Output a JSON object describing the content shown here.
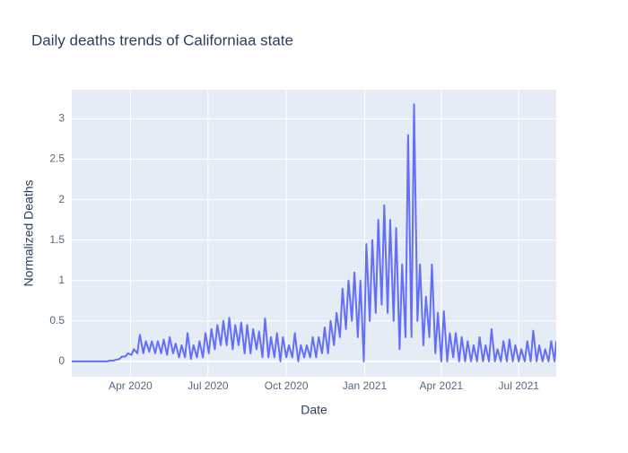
{
  "chart_data": {
    "type": "line",
    "title": "Daily deaths trends of Californiaa state",
    "x_label": "Date",
    "y_label": "Normalized Deaths",
    "xlim": [
      "2020-01-23",
      "2021-08-14"
    ],
    "ylim": [
      -0.19,
      3.36
    ],
    "xticks": [
      {
        "value": "2020-04-01",
        "label": "Apr 2020"
      },
      {
        "value": "2020-07-01",
        "label": "Jul 2020"
      },
      {
        "value": "2020-10-01",
        "label": "Oct 2020"
      },
      {
        "value": "2021-01-01",
        "label": "Jan 2021"
      },
      {
        "value": "2021-04-01",
        "label": "Apr 2021"
      },
      {
        "value": "2021-07-01",
        "label": "Jul 2021"
      }
    ],
    "yticks": [
      0,
      0.5,
      1,
      1.5,
      2,
      2.5,
      3
    ],
    "grid": true,
    "x": [
      "2020-01-23",
      "2020-01-26",
      "2020-01-30",
      "2020-02-02",
      "2020-02-06",
      "2020-02-09",
      "2020-02-13",
      "2020-02-16",
      "2020-02-20",
      "2020-02-23",
      "2020-02-27",
      "2020-03-01",
      "2020-03-05",
      "2020-03-08",
      "2020-03-12",
      "2020-03-15",
      "2020-03-19",
      "2020-03-22",
      "2020-03-26",
      "2020-03-29",
      "2020-04-02",
      "2020-04-05",
      "2020-04-09",
      "2020-04-12",
      "2020-04-16",
      "2020-04-19",
      "2020-04-23",
      "2020-04-26",
      "2020-04-30",
      "2020-05-03",
      "2020-05-07",
      "2020-05-10",
      "2020-05-14",
      "2020-05-17",
      "2020-05-21",
      "2020-05-24",
      "2020-05-28",
      "2020-05-31",
      "2020-06-04",
      "2020-06-07",
      "2020-06-11",
      "2020-06-14",
      "2020-06-18",
      "2020-06-21",
      "2020-06-25",
      "2020-06-28",
      "2020-07-02",
      "2020-07-05",
      "2020-07-09",
      "2020-07-12",
      "2020-07-16",
      "2020-07-19",
      "2020-07-23",
      "2020-07-26",
      "2020-07-30",
      "2020-08-02",
      "2020-08-06",
      "2020-08-09",
      "2020-08-13",
      "2020-08-16",
      "2020-08-20",
      "2020-08-23",
      "2020-08-27",
      "2020-08-30",
      "2020-09-03",
      "2020-09-06",
      "2020-09-10",
      "2020-09-13",
      "2020-09-17",
      "2020-09-20",
      "2020-09-24",
      "2020-09-27",
      "2020-10-01",
      "2020-10-04",
      "2020-10-08",
      "2020-10-11",
      "2020-10-15",
      "2020-10-18",
      "2020-10-22",
      "2020-10-25",
      "2020-10-29",
      "2020-11-01",
      "2020-11-05",
      "2020-11-08",
      "2020-11-12",
      "2020-11-15",
      "2020-11-19",
      "2020-11-22",
      "2020-11-26",
      "2020-11-29",
      "2020-12-03",
      "2020-12-06",
      "2020-12-10",
      "2020-12-13",
      "2020-12-17",
      "2020-12-20",
      "2020-12-24",
      "2020-12-27",
      "2020-12-31",
      "2021-01-03",
      "2021-01-07",
      "2021-01-10",
      "2021-01-14",
      "2021-01-17",
      "2021-01-21",
      "2021-01-24",
      "2021-01-28",
      "2021-01-31",
      "2021-02-04",
      "2021-02-07",
      "2021-02-11",
      "2021-02-14",
      "2021-02-18",
      "2021-02-21",
      "2021-02-25",
      "2021-02-28",
      "2021-03-04",
      "2021-03-07",
      "2021-03-11",
      "2021-03-14",
      "2021-03-18",
      "2021-03-21",
      "2021-03-25",
      "2021-03-28",
      "2021-04-01",
      "2021-04-04",
      "2021-04-08",
      "2021-04-11",
      "2021-04-15",
      "2021-04-18",
      "2021-04-22",
      "2021-04-25",
      "2021-04-29",
      "2021-05-02",
      "2021-05-06",
      "2021-05-09",
      "2021-05-13",
      "2021-05-16",
      "2021-05-20",
      "2021-05-23",
      "2021-05-27",
      "2021-05-30",
      "2021-06-03",
      "2021-06-06",
      "2021-06-10",
      "2021-06-13",
      "2021-06-17",
      "2021-06-20",
      "2021-06-24",
      "2021-06-27",
      "2021-07-01",
      "2021-07-04",
      "2021-07-08",
      "2021-07-11",
      "2021-07-15",
      "2021-07-18",
      "2021-07-22",
      "2021-07-25",
      "2021-07-29",
      "2021-08-01",
      "2021-08-05",
      "2021-08-08",
      "2021-08-12",
      "2021-08-14"
    ],
    "series": [
      {
        "color": "#636efa",
        "values": [
          0,
          0,
          0,
          0,
          0,
          0,
          0,
          0,
          0,
          0,
          0,
          0,
          0,
          0.01,
          0.01,
          0.02,
          0.03,
          0.06,
          0.06,
          0.1,
          0.08,
          0.15,
          0.1,
          0.33,
          0.1,
          0.25,
          0.12,
          0.25,
          0.1,
          0.25,
          0.1,
          0.27,
          0.08,
          0.3,
          0.1,
          0.22,
          0.05,
          0.2,
          0.05,
          0.35,
          0.03,
          0.2,
          0.05,
          0.25,
          0.05,
          0.35,
          0.1,
          0.4,
          0.15,
          0.45,
          0.2,
          0.5,
          0.2,
          0.54,
          0.15,
          0.45,
          0.2,
          0.48,
          0.1,
          0.45,
          0.1,
          0.4,
          0.15,
          0.37,
          0.05,
          0.53,
          0.05,
          0.3,
          0.05,
          0.35,
          0,
          0.3,
          0.05,
          0.2,
          0.05,
          0.35,
          0,
          0.2,
          0.05,
          0.2,
          0.05,
          0.3,
          0.05,
          0.3,
          0.1,
          0.42,
          0.1,
          0.5,
          0.2,
          0.6,
          0.3,
          0.9,
          0.4,
          1.0,
          0.5,
          1.1,
          0.3,
          1.0,
          0,
          1.45,
          0.5,
          1.5,
          0.6,
          1.75,
          0.7,
          1.93,
          0.6,
          1.75,
          0.5,
          1.65,
          0.15,
          1.2,
          0.3,
          2.8,
          0.3,
          3.18,
          0.5,
          1.2,
          0.2,
          0.8,
          0.3,
          1.2,
          0.1,
          0.6,
          0,
          0.62,
          0,
          0.35,
          0.05,
          0.35,
          0,
          0.3,
          0,
          0.25,
          0,
          0.2,
          0,
          0.3,
          0,
          0.2,
          0,
          0.4,
          0,
          0.15,
          0,
          0.25,
          0,
          0.27,
          0,
          0.2,
          0,
          0.15,
          0,
          0.25,
          0,
          0.38,
          0,
          0.2,
          0,
          0.15,
          0,
          0.25,
          0,
          0.25
        ]
      }
    ]
  }
}
